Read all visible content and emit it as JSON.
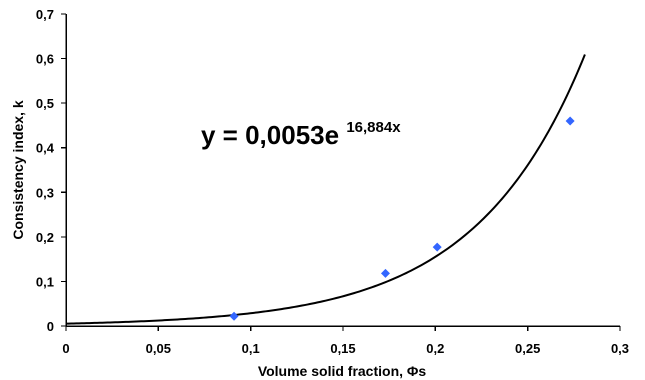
{
  "chart_data": {
    "type": "scatter",
    "xlabel": "Volume solid fraction, Φs",
    "ylabel": "Consistency index, k",
    "xlim": [
      0,
      0.3
    ],
    "ylim": [
      0,
      0.7
    ],
    "x_ticks": [
      "0",
      "0,05",
      "0,1",
      "0,15",
      "0,2",
      "0,25",
      "0,3"
    ],
    "y_ticks": [
      "0",
      "0,1",
      "0,2",
      "0,3",
      "0,4",
      "0,5",
      "0,6",
      "0,7"
    ],
    "x_tick_values": [
      0,
      0.05,
      0.1,
      0.15,
      0.2,
      0.25,
      0.3
    ],
    "y_tick_values": [
      0,
      0.1,
      0.2,
      0.3,
      0.4,
      0.5,
      0.6,
      0.7
    ],
    "grid": false,
    "legend": "none",
    "series": [
      {
        "type": "scatter",
        "marker": "diamond",
        "color": "#3366FF",
        "points": [
          {
            "x": 0.091,
            "y": 0.022
          },
          {
            "x": 0.173,
            "y": 0.118
          },
          {
            "x": 0.201,
            "y": 0.177
          },
          {
            "x": 0.273,
            "y": 0.46
          }
        ]
      }
    ],
    "trendline": {
      "type": "exponential",
      "coefficient": 0.0053,
      "exponent": 16.884,
      "x_start": 0,
      "x_end": 0.281,
      "color": "#000000",
      "equation_main": "y = 0,0053e",
      "equation_exponent": "16,884x"
    }
  }
}
